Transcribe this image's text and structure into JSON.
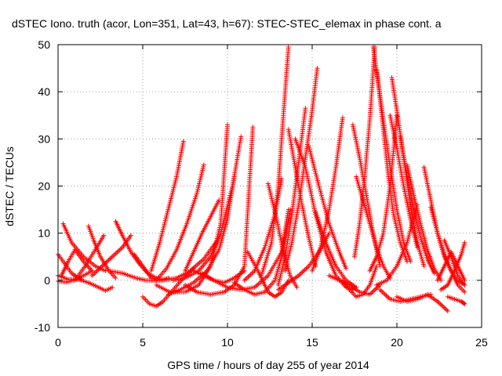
{
  "chart_data": {
    "type": "scatter",
    "title": "dSTEC Iono. truth (acor, Lon=351, Lat=43, h=67): STEC-STEC_elemax in phase cont. a",
    "xlabel": "GPS time / hours of day 255 of year 2014",
    "ylabel": "dSTEC  / TECUs",
    "xlim": [
      0,
      25
    ],
    "ylim": [
      -10,
      50
    ],
    "xticks": [
      0,
      5,
      10,
      15,
      20,
      25
    ],
    "yticks": [
      -10,
      0,
      10,
      20,
      30,
      40,
      50
    ],
    "grid": true,
    "marker": "+",
    "color": "#ff0000",
    "series": [
      {
        "x": [
          0.0,
          0.4,
          0.8,
          1.2,
          1.4
        ],
        "y": [
          5.5,
          3.5,
          1.5,
          0.5,
          0.2
        ]
      },
      {
        "x": [
          0.0,
          0.6,
          1.2,
          1.8,
          2.4,
          2.8,
          3.2
        ],
        "y": [
          1.0,
          0.2,
          0.2,
          -0.5,
          -1.5,
          -2.2,
          -1.5
        ]
      },
      {
        "x": [
          0.0,
          0.5,
          1.0,
          1.5,
          2.0
        ],
        "y": [
          -0.2,
          -0.4,
          0.1,
          1.0,
          2.0
        ]
      },
      {
        "x": [
          0.2,
          0.6,
          1.0,
          1.5,
          2.0
        ],
        "y": [
          1.0,
          4.0,
          6.5,
          4.0,
          2.0
        ]
      },
      {
        "x": [
          0.3,
          0.8,
          1.5,
          2.2,
          2.8
        ],
        "y": [
          12.0,
          8.0,
          5.0,
          3.0,
          2.0
        ]
      },
      {
        "x": [
          1.8,
          2.1,
          2.5,
          3.0,
          3.4
        ],
        "y": [
          11.5,
          8.5,
          5.0,
          2.0,
          0.5
        ]
      },
      {
        "x": [
          1.0,
          1.6,
          2.2,
          2.7
        ],
        "y": [
          0.0,
          3.0,
          6.5,
          9.5
        ]
      },
      {
        "x": [
          2.0,
          2.6,
          3.2,
          3.8,
          4.3
        ],
        "y": [
          1.0,
          3.0,
          5.0,
          7.0,
          9.5
        ]
      },
      {
        "x": [
          3.4,
          3.8,
          4.3,
          4.8,
          5.3,
          5.8,
          6.2
        ],
        "y": [
          12.5,
          9.5,
          6.0,
          3.5,
          1.5,
          0.5,
          0.0
        ]
      },
      {
        "x": [
          3.0,
          3.8,
          4.6,
          5.2,
          5.8
        ],
        "y": [
          2.0,
          1.5,
          0.5,
          0.0,
          0.0
        ]
      },
      {
        "x": [
          4.5,
          5.0,
          5.5,
          6.0,
          6.5
        ],
        "y": [
          5.5,
          3.0,
          0.5,
          0.0,
          0.5
        ]
      },
      {
        "x": [
          5.0,
          5.4,
          5.8,
          6.2,
          6.8,
          7.4,
          8.0
        ],
        "y": [
          -3.5,
          -5.0,
          -5.5,
          -4.5,
          -2.0,
          0.5,
          2.5
        ]
      },
      {
        "x": [
          5.5,
          6.0,
          6.5,
          7.0,
          7.4
        ],
        "y": [
          2.0,
          8.0,
          15.0,
          22.0,
          29.5
        ]
      },
      {
        "x": [
          5.8,
          6.4,
          7.0,
          7.6,
          8.2,
          8.6
        ],
        "y": [
          0.0,
          2.5,
          6.5,
          12.0,
          18.5,
          24.5
        ]
      },
      {
        "x": [
          5.5,
          6.2,
          7.0,
          7.8,
          8.6,
          9.4
        ],
        "y": [
          0.0,
          0.0,
          0.5,
          2.0,
          4.5,
          8.5
        ]
      },
      {
        "x": [
          5.8,
          6.6,
          7.5,
          8.3,
          9.0,
          9.6,
          10.0
        ],
        "y": [
          -1.0,
          -2.5,
          -2.5,
          -1.0,
          3.0,
          12.0,
          33.0
        ]
      },
      {
        "x": [
          6.5,
          7.2,
          8.0,
          8.8,
          9.5,
          10.0,
          10.4
        ],
        "y": [
          -3.0,
          -2.0,
          -0.5,
          2.0,
          6.5,
          13.0,
          22.0
        ]
      },
      {
        "x": [
          6.8,
          7.5,
          8.3,
          9.0,
          9.6,
          10.3,
          10.8
        ],
        "y": [
          0.0,
          0.5,
          2.0,
          5.0,
          10.0,
          20.0,
          30.5
        ]
      },
      {
        "x": [
          7.5,
          8.0,
          8.5,
          9.0,
          9.5
        ],
        "y": [
          2.0,
          6.0,
          10.0,
          13.5,
          17.0
        ]
      },
      {
        "x": [
          7.5,
          8.2,
          9.0,
          9.8,
          10.4,
          11.0,
          11.5
        ],
        "y": [
          -1.0,
          -2.5,
          -3.0,
          -2.5,
          -1.0,
          3.0,
          32.5
        ]
      },
      {
        "x": [
          8.0,
          8.6,
          9.2,
          9.8,
          10.4,
          11.0
        ],
        "y": [
          2.0,
          1.0,
          0.0,
          -0.5,
          0.5,
          2.0
        ]
      },
      {
        "x": [
          8.5,
          9.2,
          10.0,
          10.8,
          11.6,
          12.4,
          13.2,
          13.6
        ],
        "y": [
          1.5,
          0.0,
          -1.5,
          -2.0,
          -1.5,
          1.0,
          6.0,
          15.0
        ]
      },
      {
        "x": [
          11.0,
          11.6,
          12.2,
          12.8,
          13.2
        ],
        "y": [
          0.0,
          2.0,
          7.0,
          14.0,
          21.5
        ]
      },
      {
        "x": [
          11.2,
          11.8,
          12.4,
          12.8,
          13.2,
          13.6
        ],
        "y": [
          6.0,
          2.0,
          -2.5,
          -3.5,
          -2.5,
          0.0
        ]
      },
      {
        "x": [
          10.4,
          11.0,
          11.6,
          12.2,
          12.8,
          13.2,
          13.7
        ],
        "y": [
          -0.5,
          -2.0,
          -3.0,
          -2.5,
          0.0,
          5.0,
          15.0
        ]
      },
      {
        "x": [
          12.4,
          12.9,
          13.3,
          13.7,
          14.1
        ],
        "y": [
          20.5,
          13.0,
          6.0,
          1.0,
          -1.5
        ]
      },
      {
        "x": [
          12.0,
          12.6,
          13.0,
          13.3,
          13.6
        ],
        "y": [
          1.0,
          8.0,
          20.0,
          35.0,
          49.5
        ]
      },
      {
        "x": [
          13.0,
          13.4,
          13.8,
          14.2,
          14.6
        ],
        "y": [
          -1.0,
          5.0,
          14.0,
          25.0,
          36.5
        ]
      },
      {
        "x": [
          13.4,
          13.8,
          14.2,
          14.6,
          15.0,
          15.3
        ],
        "y": [
          2.0,
          8.0,
          16.0,
          26.0,
          36.0,
          45.0
        ]
      },
      {
        "x": [
          13.6,
          14.0,
          14.4,
          14.8,
          15.2
        ],
        "y": [
          32.0,
          24.0,
          16.0,
          9.0,
          3.0
        ]
      },
      {
        "x": [
          13.0,
          13.6,
          14.2,
          14.8,
          15.4,
          16.0
        ],
        "y": [
          -2.0,
          -0.5,
          1.0,
          3.0,
          6.0,
          10.0
        ]
      },
      {
        "x": [
          14.0,
          14.6,
          15.2,
          15.8,
          16.4,
          17.0,
          17.4
        ],
        "y": [
          30.0,
          24.0,
          14.0,
          6.0,
          1.0,
          -1.5,
          -2.0
        ]
      },
      {
        "x": [
          14.8,
          15.4,
          16.0,
          16.6,
          17.0
        ],
        "y": [
          28.5,
          20.0,
          12.0,
          6.0,
          2.5
        ]
      },
      {
        "x": [
          15.0,
          15.5,
          16.0,
          16.4,
          16.8
        ],
        "y": [
          2.0,
          7.0,
          15.0,
          24.0,
          34.5
        ]
      },
      {
        "x": [
          15.2,
          15.8,
          16.4,
          17.0,
          17.6
        ],
        "y": [
          14.5,
          8.0,
          3.0,
          0.0,
          -1.5
        ]
      },
      {
        "x": [
          16.0,
          16.6,
          17.2,
          17.8,
          18.4,
          19.0
        ],
        "y": [
          1.0,
          0.0,
          -1.0,
          -2.5,
          -3.0,
          -1.0
        ]
      },
      {
        "x": [
          16.8,
          17.2,
          17.6,
          18.0,
          18.4,
          18.8
        ],
        "y": [
          0.0,
          -2.0,
          -3.5,
          -3.0,
          -1.0,
          3.0
        ]
      },
      {
        "x": [
          17.5,
          17.8,
          18.1,
          18.4,
          18.7
        ],
        "y": [
          5.0,
          12.0,
          22.0,
          34.0,
          49.5
        ]
      },
      {
        "x": [
          17.4,
          17.8,
          18.2,
          18.6,
          19.0
        ],
        "y": [
          33.0,
          26.0,
          18.0,
          10.0,
          3.0
        ]
      },
      {
        "x": [
          17.6,
          18.0,
          18.4,
          18.8,
          19.2,
          19.6
        ],
        "y": [
          22.0,
          17.0,
          12.0,
          7.0,
          3.0,
          0.5
        ]
      },
      {
        "x": [
          18.4,
          18.8,
          19.2,
          19.6,
          20.0
        ],
        "y": [
          2.0,
          5.0,
          10.0,
          20.0,
          35.0
        ]
      },
      {
        "x": [
          18.6,
          18.9,
          19.2,
          19.5,
          19.8,
          20.2,
          20.6
        ],
        "y": [
          49.5,
          42.0,
          32.0,
          22.0,
          14.0,
          8.0,
          4.0
        ]
      },
      {
        "x": [
          18.8,
          19.2,
          19.6,
          20.0,
          20.4,
          20.8
        ],
        "y": [
          44.5,
          34.0,
          24.0,
          15.0,
          8.0,
          4.0
        ]
      },
      {
        "x": [
          19.7,
          20.0,
          20.4,
          20.8,
          21.2,
          21.6
        ],
        "y": [
          43.0,
          36.0,
          26.0,
          16.0,
          8.0,
          3.0
        ]
      },
      {
        "x": [
          19.6,
          20.0,
          20.4,
          20.8,
          21.2
        ],
        "y": [
          35.0,
          28.0,
          20.0,
          13.0,
          7.0
        ]
      },
      {
        "x": [
          20.2,
          20.6,
          21.0,
          21.4,
          21.8,
          22.2
        ],
        "y": [
          30.5,
          22.0,
          15.0,
          9.0,
          4.5,
          1.5
        ]
      },
      {
        "x": [
          20.6,
          21.0,
          21.4,
          21.8,
          22.2,
          22.6
        ],
        "y": [
          24.5,
          18.0,
          12.0,
          6.5,
          2.5,
          0.0
        ]
      },
      {
        "x": [
          18.8,
          19.4,
          20.0,
          20.6,
          21.2
        ],
        "y": [
          -1.0,
          0.0,
          3.0,
          8.0,
          16.0
        ]
      },
      {
        "x": [
          19.0,
          19.6,
          20.2,
          20.8,
          21.4,
          22.0
        ],
        "y": [
          -2.0,
          -4.0,
          -4.5,
          -4.0,
          -3.5,
          -3.0
        ]
      },
      {
        "x": [
          20.0,
          20.6,
          21.2,
          21.8,
          22.4,
          23.0
        ],
        "y": [
          -3.5,
          -4.5,
          -4.0,
          -3.0,
          -4.5,
          -6.5
        ]
      },
      {
        "x": [
          21.6,
          22.0,
          22.4,
          22.8,
          23.2,
          23.6,
          24.0
        ],
        "y": [
          24.0,
          17.0,
          10.0,
          5.0,
          2.0,
          0.0,
          -1.0
        ]
      },
      {
        "x": [
          22.0,
          22.4,
          22.8,
          23.2,
          23.6,
          24.0
        ],
        "y": [
          15.5,
          10.0,
          5.5,
          2.0,
          -1.0,
          -2.5
        ]
      },
      {
        "x": [
          22.8,
          23.2,
          23.6,
          24.0
        ],
        "y": [
          8.5,
          5.0,
          1.0,
          -1.0
        ]
      },
      {
        "x": [
          22.6,
          23.0,
          23.4,
          23.8,
          24.0
        ],
        "y": [
          -2.0,
          -1.0,
          2.0,
          5.5,
          8.0
        ]
      },
      {
        "x": [
          22.4,
          22.8,
          23.2,
          23.6,
          24.0
        ],
        "y": [
          0.0,
          3.0,
          6.0,
          3.0,
          0.0
        ]
      },
      {
        "x": [
          23.0,
          23.4,
          23.8,
          24.0
        ],
        "y": [
          -3.5,
          -4.0,
          -4.5,
          -5.0
        ]
      }
    ]
  }
}
